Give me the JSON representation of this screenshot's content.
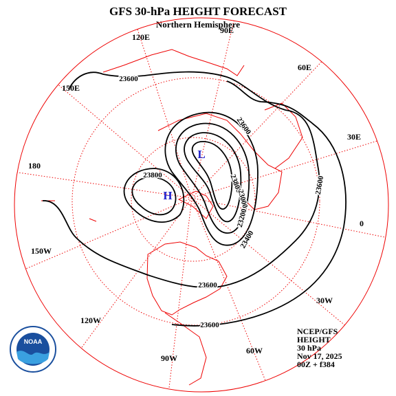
{
  "header": {
    "title": "GFS 30-hPa HEIGHT FORECAST",
    "subtitle": "Northern Hemisphere"
  },
  "longitude_labels": [
    "90E",
    "120E",
    "60E",
    "150E",
    "30E",
    "180",
    "0",
    "150W",
    "30W",
    "120W",
    "90W",
    "60W"
  ],
  "contour_labels": [
    "23600",
    "23600",
    "23800",
    "23800",
    "23000",
    "23200",
    "23400",
    "23600",
    "23600",
    "23600"
  ],
  "centers": [
    "L",
    "H"
  ],
  "info": [
    "NCEP/GFS",
    "HEIGHT",
    "30 hPa",
    "Nov 17, 2025",
    "00Z + f384"
  ],
  "logo": "NOAA"
}
